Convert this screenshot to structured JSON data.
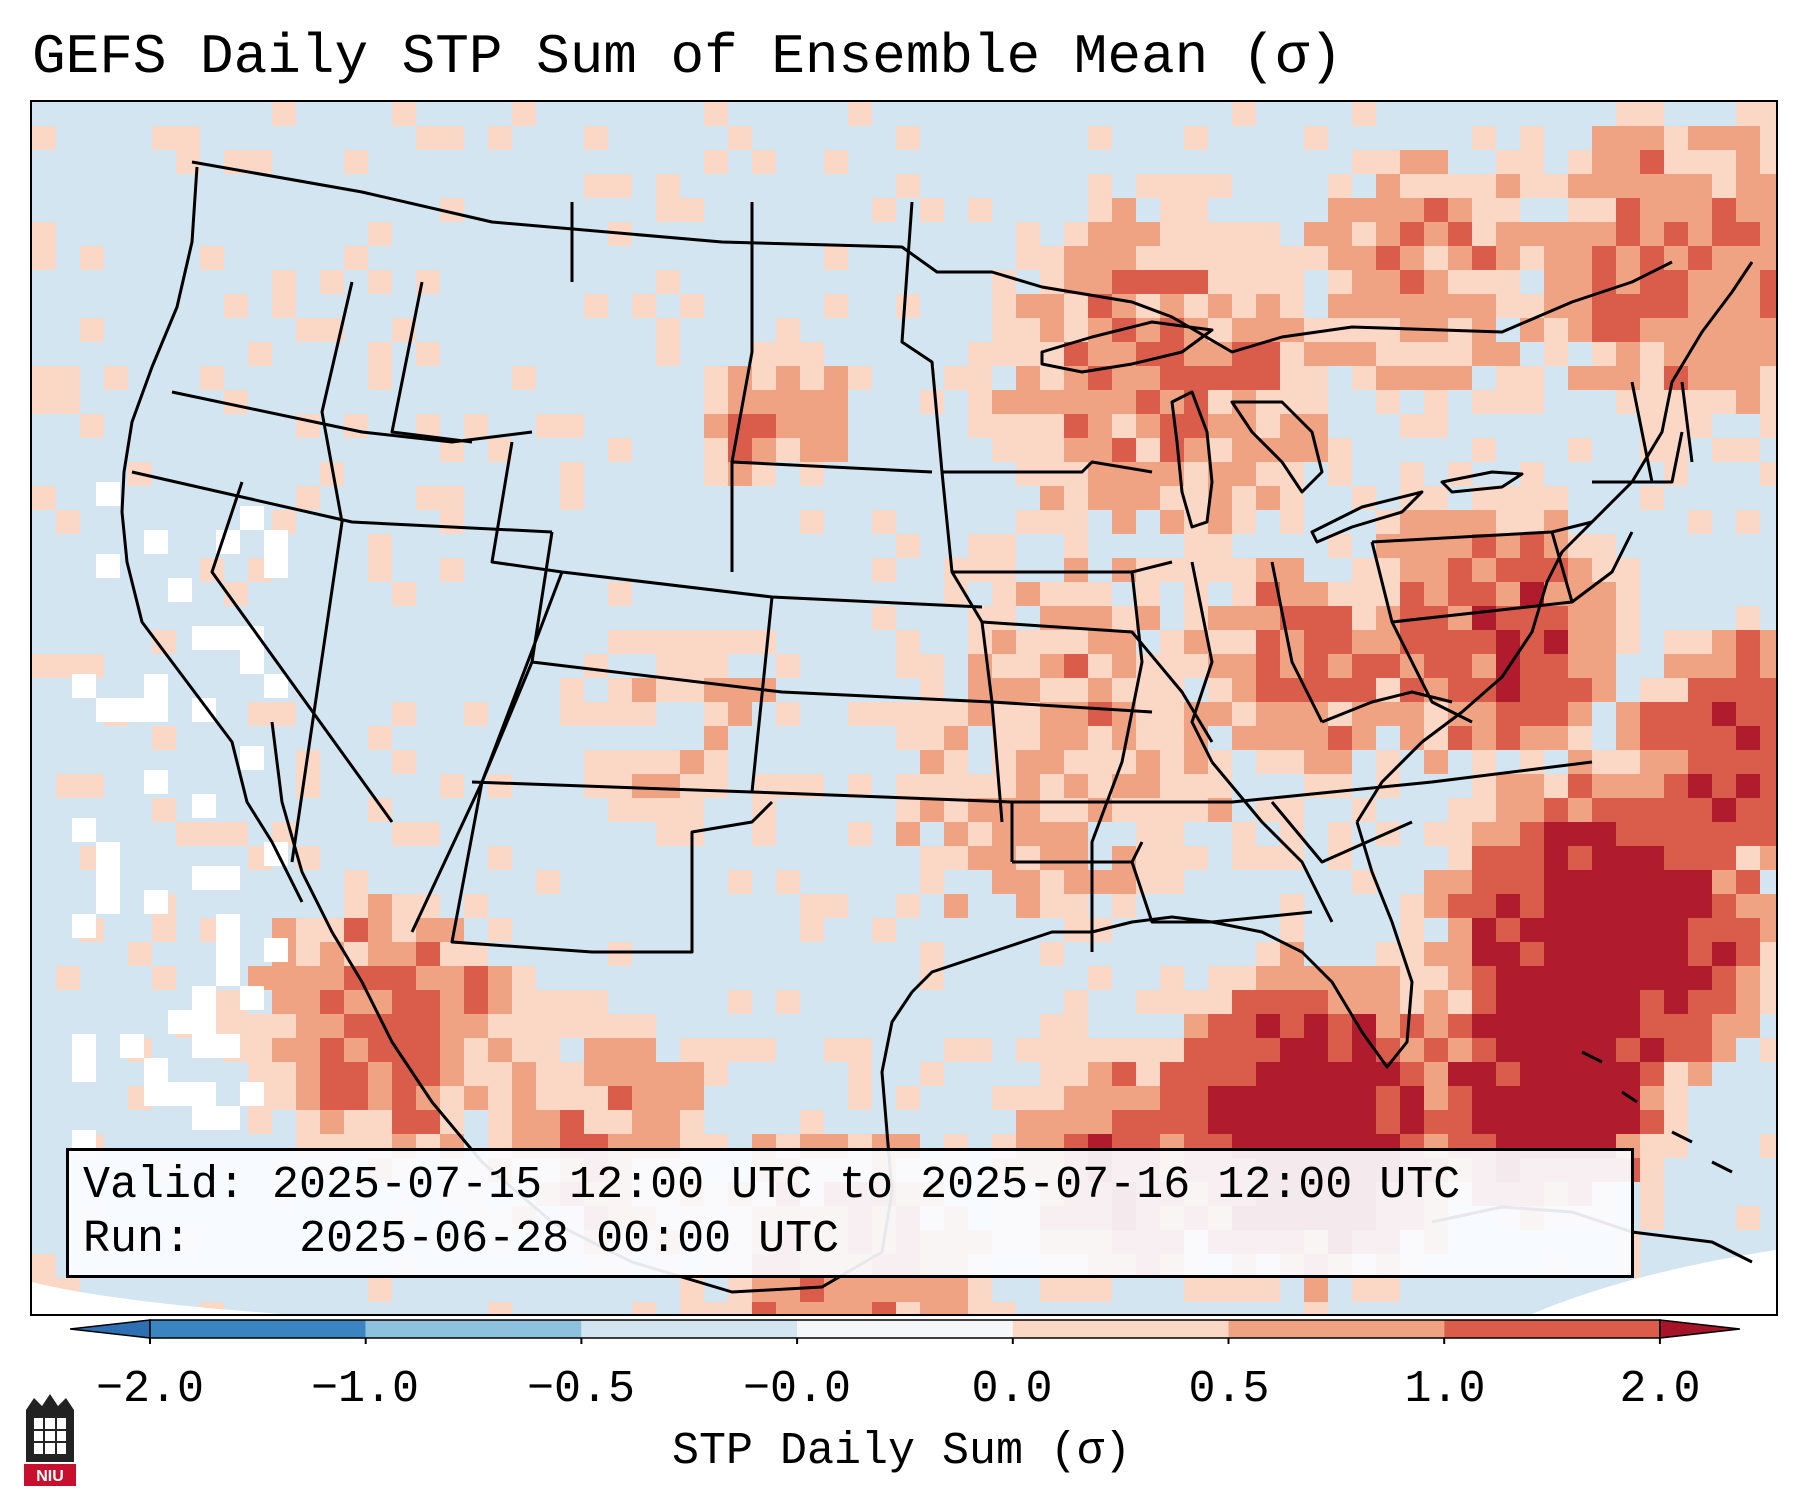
{
  "title": "GEFS Daily STP Sum of Ensemble Mean (σ)",
  "info": {
    "valid_label": "Valid:",
    "valid_value": "2025-07-15 12:00 UTC to 2025-07-16 12:00 UTC",
    "run_label": "Run:",
    "run_value": "2025-06-28 00:00 UTC"
  },
  "colorbar": {
    "label": "STP Daily Sum (σ)",
    "ticks": [
      "−2.0",
      "−1.0",
      "−0.5",
      "−0.0",
      "0.0",
      "0.5",
      "1.0",
      "2.0"
    ],
    "bin_colors": [
      "#3a84c2",
      "#8ec1de",
      "#d2e5f0",
      "#f5f7f9",
      "#fbd8c6",
      "#f0a383",
      "#d95d4a",
      "#b01c2e"
    ],
    "extend_low_color": "#2c6fb3",
    "extend_high_color": "#a51428"
  },
  "map": {
    "background_color": "#d2e5f0",
    "missing_color": "#ffffff",
    "border_color": "#000000"
  },
  "logo": {
    "text": "NIU"
  }
}
